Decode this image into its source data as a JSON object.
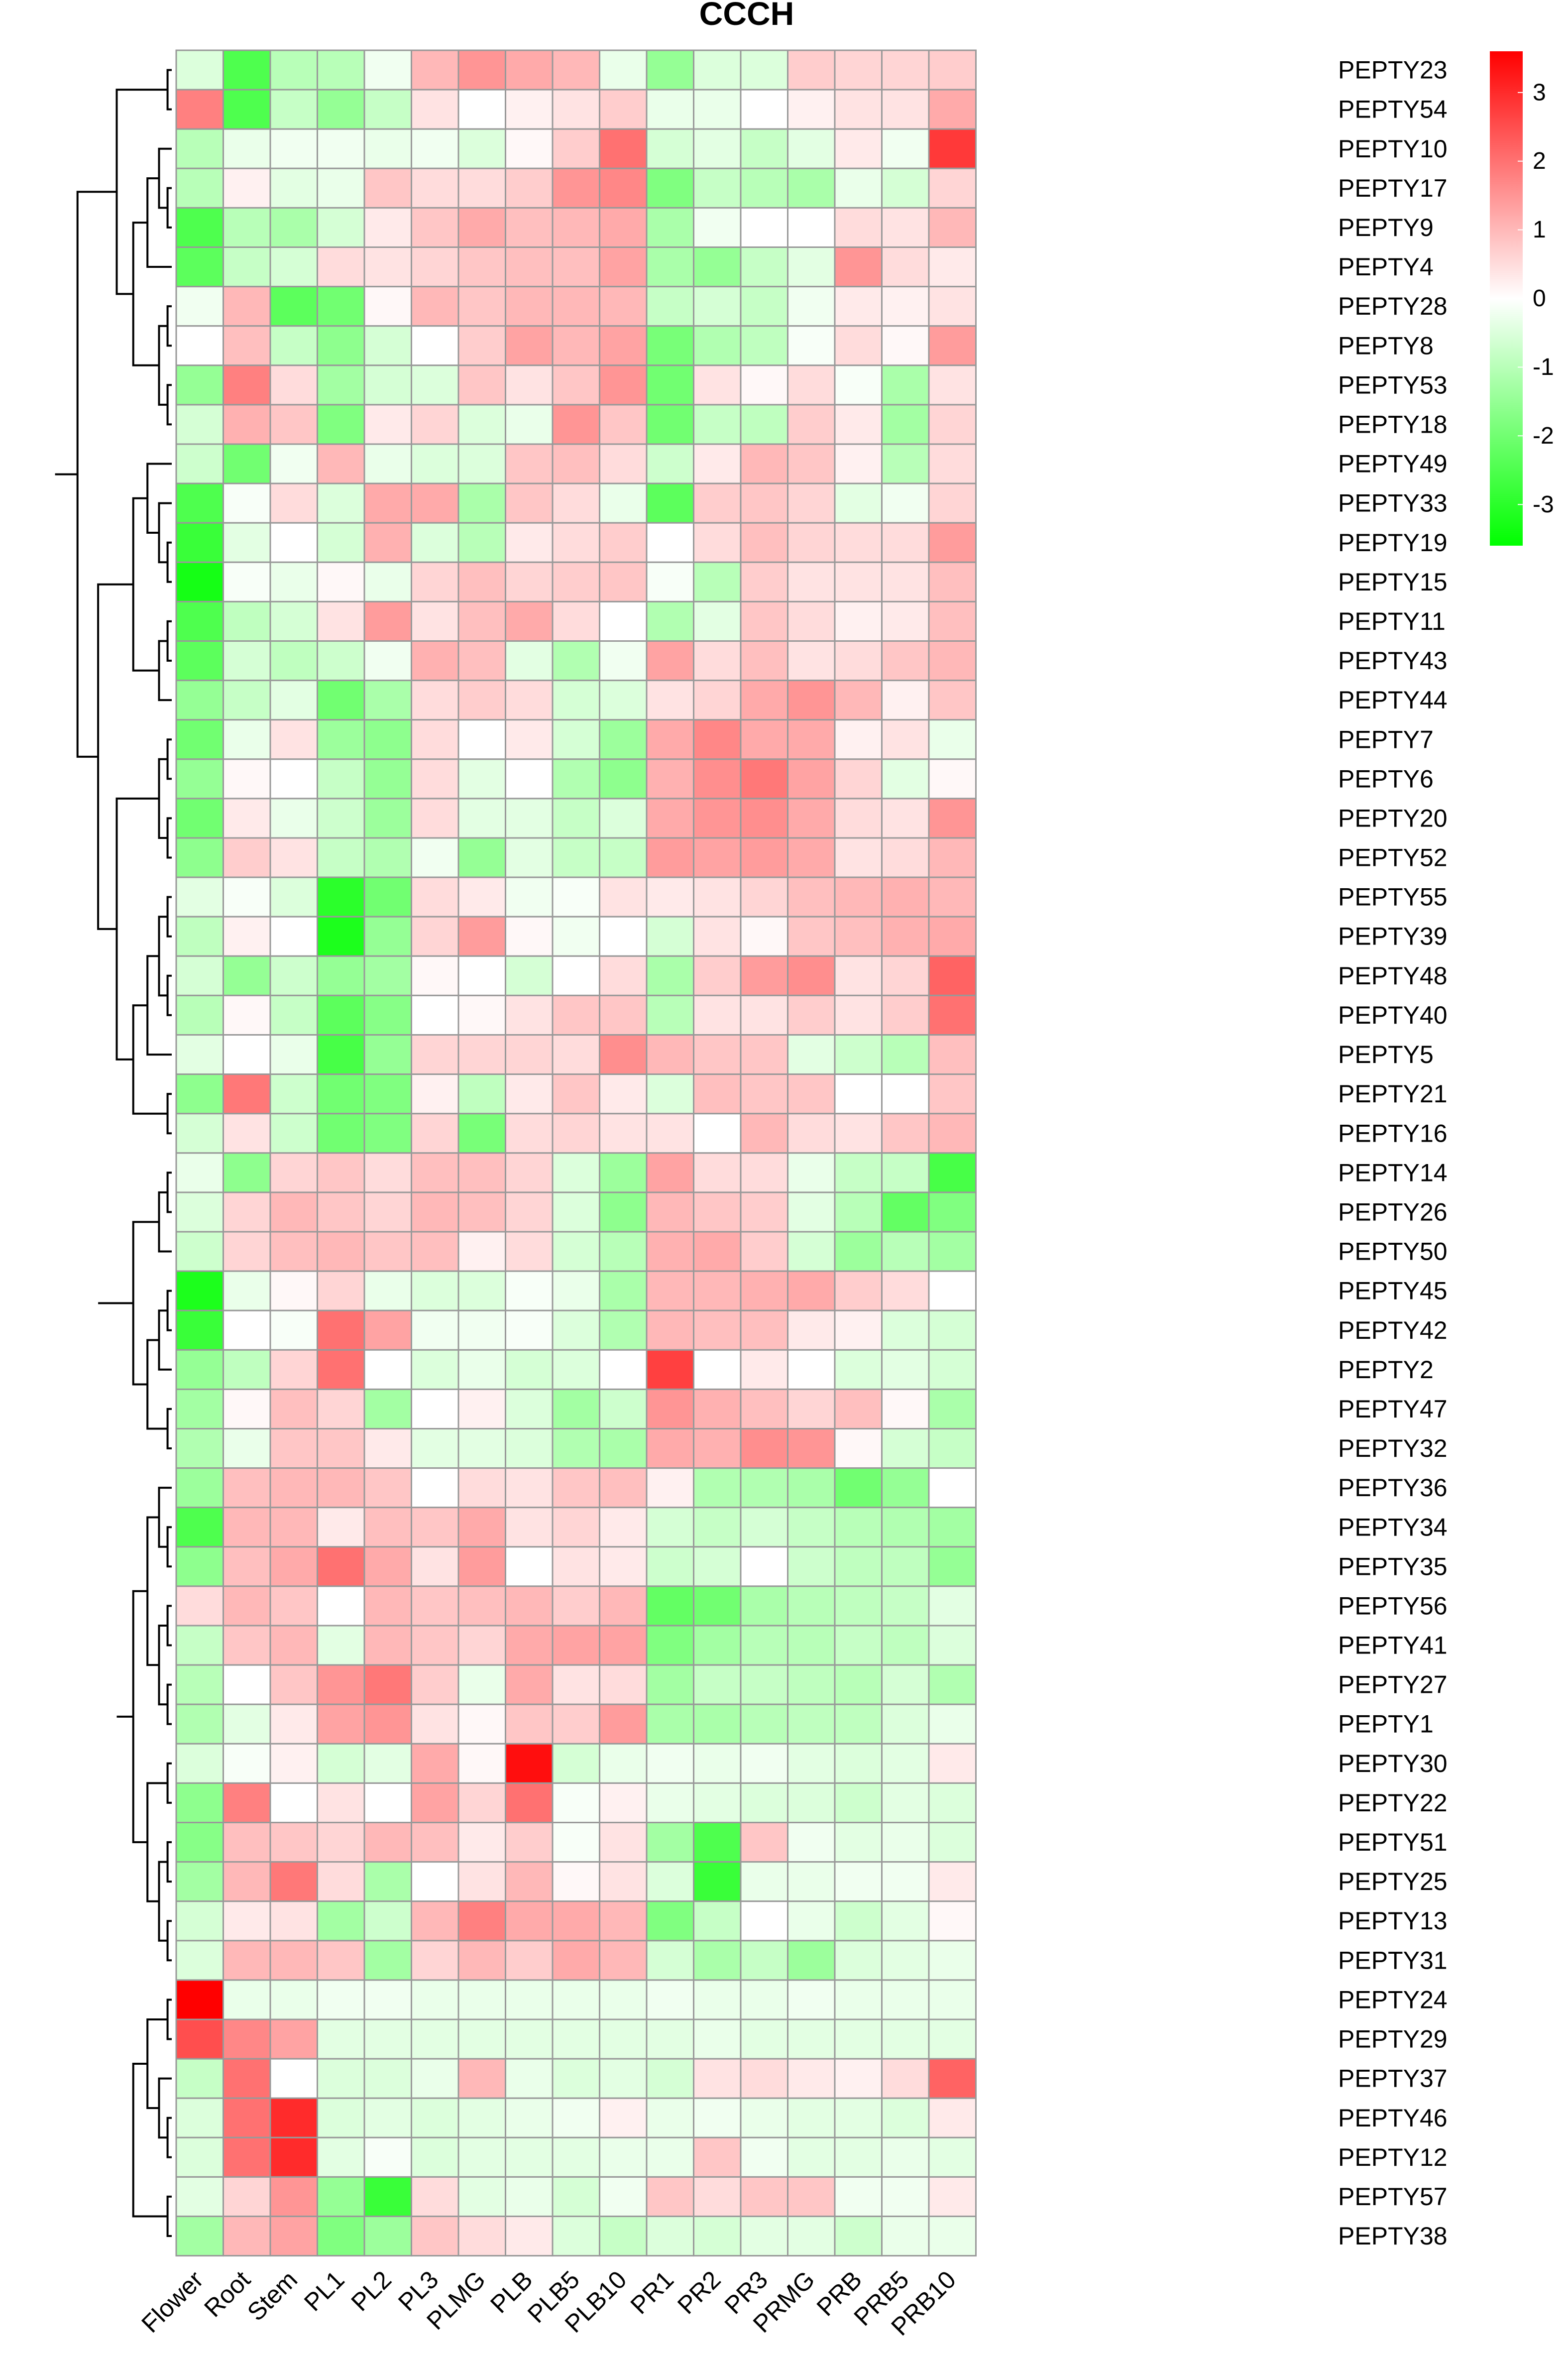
{
  "chart_data": {
    "type": "heatmap",
    "title": "CCCH",
    "xlabel": "",
    "ylabel": "",
    "columns": [
      "Flower",
      "Root",
      "Stem",
      "PL1",
      "PL2",
      "PL3",
      "PLMG",
      "PLB",
      "PLB5",
      "PLB10",
      "PR1",
      "PR2",
      "PR3",
      "PRMG",
      "PRB",
      "PRB5",
      "PRB10"
    ],
    "rows": [
      "PEPTY23",
      "PEPTY54",
      "PEPTY10",
      "PEPTY17",
      "PEPTY9",
      "PEPTY4",
      "PEPTY28",
      "PEPTY8",
      "PEPTY53",
      "PEPTY18",
      "PEPTY49",
      "PEPTY33",
      "PEPTY19",
      "PEPTY15",
      "PEPTY11",
      "PEPTY43",
      "PEPTY44",
      "PEPTY7",
      "PEPTY6",
      "PEPTY20",
      "PEPTY52",
      "PEPTY55",
      "PEPTY39",
      "PEPTY48",
      "PEPTY40",
      "PEPTY5",
      "PEPTY21",
      "PEPTY16",
      "PEPTY14",
      "PEPTY26",
      "PEPTY50",
      "PEPTY45",
      "PEPTY42",
      "PEPTY2",
      "PEPTY47",
      "PEPTY32",
      "PEPTY36",
      "PEPTY34",
      "PEPTY35",
      "PEPTY56",
      "PEPTY41",
      "PEPTY27",
      "PEPTY1",
      "PEPTY30",
      "PEPTY22",
      "PEPTY51",
      "PEPTY25",
      "PEPTY13",
      "PEPTY31",
      "PEPTY24",
      "PEPTY29",
      "PEPTY37",
      "PEPTY46",
      "PEPTY12",
      "PEPTY57",
      "PEPTY38"
    ],
    "values": [
      [
        -0.5,
        -2.5,
        -1.0,
        -1.0,
        -0.2,
        1.0,
        1.5,
        1.2,
        1.0,
        -0.3,
        -1.5,
        -0.5,
        -0.5,
        0.7,
        0.6,
        0.6,
        0.7
      ],
      [
        1.8,
        -2.5,
        -0.8,
        -1.5,
        -0.8,
        0.4,
        0.0,
        0.2,
        0.4,
        0.7,
        -0.3,
        -0.3,
        0.0,
        0.2,
        0.4,
        0.4,
        1.2
      ],
      [
        -1.0,
        -0.3,
        -0.2,
        -0.2,
        -0.3,
        -0.2,
        -0.5,
        0.1,
        0.7,
        2.0,
        -0.6,
        -0.4,
        -0.8,
        -0.4,
        0.3,
        -0.2,
        2.8
      ],
      [
        -1.0,
        0.2,
        -0.4,
        -0.3,
        0.8,
        0.5,
        0.5,
        0.7,
        1.5,
        1.7,
        -1.8,
        -0.8,
        -1.0,
        -1.2,
        -0.3,
        -0.6,
        0.6
      ],
      [
        -2.5,
        -1.0,
        -1.2,
        -0.6,
        0.3,
        0.8,
        1.2,
        0.9,
        1.0,
        1.2,
        -1.2,
        -0.2,
        0.0,
        0.0,
        0.5,
        0.4,
        1.0
      ],
      [
        -2.3,
        -0.8,
        -0.6,
        0.5,
        0.4,
        0.6,
        0.8,
        0.9,
        0.9,
        1.3,
        -1.2,
        -1.5,
        -0.8,
        -0.4,
        1.5,
        0.5,
        0.3
      ],
      [
        -0.2,
        1.0,
        -2.3,
        -2.0,
        0.1,
        1.0,
        0.8,
        1.0,
        1.0,
        1.0,
        -0.8,
        -0.6,
        -0.8,
        -0.2,
        0.3,
        0.2,
        0.4
      ],
      [
        0.0,
        0.9,
        -0.8,
        -1.6,
        -0.6,
        0.0,
        0.7,
        1.3,
        1.0,
        1.3,
        -1.9,
        -1.1,
        -0.9,
        -0.1,
        0.5,
        0.1,
        1.4
      ],
      [
        -1.5,
        1.8,
        0.5,
        -1.3,
        -0.6,
        -0.5,
        0.8,
        0.4,
        0.8,
        1.5,
        -2.0,
        0.4,
        0.1,
        0.5,
        -0.1,
        -1.2,
        0.4
      ],
      [
        -0.6,
        1.1,
        0.8,
        -1.8,
        0.3,
        0.6,
        -0.5,
        -0.3,
        1.5,
        0.8,
        -2.0,
        -0.8,
        -0.9,
        0.7,
        0.3,
        -1.3,
        0.6
      ],
      [
        -0.7,
        -2.0,
        -0.2,
        1.0,
        -0.3,
        -0.5,
        -0.5,
        0.8,
        0.9,
        0.5,
        -0.7,
        0.3,
        1.0,
        0.8,
        0.2,
        -1.0,
        0.5
      ],
      [
        -2.5,
        -0.1,
        0.5,
        -0.5,
        1.2,
        1.2,
        -1.2,
        0.8,
        0.5,
        -0.3,
        -2.3,
        0.7,
        0.8,
        0.6,
        -0.4,
        -0.2,
        0.6
      ],
      [
        -2.8,
        -0.4,
        0.0,
        -0.6,
        1.1,
        -0.5,
        -1.0,
        0.3,
        0.5,
        0.7,
        0.0,
        0.5,
        0.9,
        0.6,
        0.5,
        0.5,
        1.4
      ],
      [
        -3.3,
        -0.1,
        -0.3,
        0.1,
        -0.3,
        0.6,
        0.9,
        0.6,
        0.7,
        0.8,
        -0.1,
        -1.0,
        0.7,
        0.4,
        0.4,
        0.4,
        0.9
      ],
      [
        -2.5,
        -0.9,
        -0.6,
        0.4,
        1.4,
        0.4,
        0.9,
        1.2,
        0.5,
        0.0,
        -1.1,
        -0.4,
        0.8,
        0.5,
        0.2,
        0.3,
        0.9
      ],
      [
        -2.3,
        -0.6,
        -0.9,
        -0.7,
        -0.2,
        1.1,
        0.9,
        -0.4,
        -1.1,
        -0.2,
        1.3,
        0.5,
        0.9,
        0.4,
        0.5,
        0.8,
        1.0
      ],
      [
        -1.5,
        -0.8,
        -0.4,
        -2.0,
        -1.2,
        0.5,
        0.7,
        0.5,
        -0.6,
        -0.5,
        0.4,
        0.6,
        1.2,
        1.5,
        1.0,
        0.2,
        0.8
      ],
      [
        -2.0,
        -0.3,
        0.4,
        -1.4,
        -1.6,
        0.5,
        0.0,
        0.3,
        -0.6,
        -1.4,
        1.2,
        1.7,
        1.2,
        1.2,
        0.2,
        0.4,
        -0.3
      ],
      [
        -1.5,
        0.1,
        0.0,
        -0.8,
        -1.5,
        0.5,
        -0.4,
        0.0,
        -1.1,
        -1.6,
        1.1,
        1.6,
        1.9,
        1.3,
        0.6,
        -0.4,
        0.1
      ],
      [
        -2.0,
        0.3,
        -0.3,
        -0.7,
        -1.4,
        0.5,
        -0.4,
        -0.4,
        -0.8,
        -0.5,
        1.2,
        1.5,
        1.6,
        1.2,
        0.5,
        0.4,
        1.5
      ],
      [
        -1.6,
        0.7,
        0.4,
        -0.8,
        -1.1,
        -0.2,
        -1.5,
        -0.4,
        -0.8,
        -0.8,
        1.4,
        1.3,
        1.4,
        1.2,
        0.4,
        0.5,
        1.0
      ],
      [
        -0.4,
        -0.1,
        -0.5,
        -3.0,
        -2.0,
        0.5,
        0.3,
        -0.2,
        -0.1,
        0.4,
        0.3,
        0.4,
        0.6,
        0.9,
        1.0,
        1.1,
        1.0
      ],
      [
        -0.9,
        0.2,
        0.0,
        -3.2,
        -1.5,
        0.6,
        1.4,
        0.1,
        -0.2,
        0.0,
        -0.6,
        0.4,
        0.1,
        0.8,
        0.9,
        1.1,
        1.2
      ],
      [
        -0.6,
        -1.5,
        -0.7,
        -1.5,
        -1.3,
        0.1,
        0.0,
        -0.6,
        0.0,
        0.5,
        -1.2,
        0.7,
        1.4,
        1.6,
        0.4,
        0.6,
        2.2
      ],
      [
        -1.0,
        0.1,
        -0.8,
        -2.3,
        -1.7,
        0.0,
        0.1,
        0.4,
        0.8,
        0.8,
        -1.0,
        0.4,
        0.4,
        0.7,
        0.4,
        0.7,
        2.0
      ],
      [
        -0.4,
        0.0,
        -0.3,
        -2.6,
        -1.5,
        0.6,
        0.6,
        0.6,
        0.5,
        1.6,
        1.0,
        0.8,
        0.8,
        -0.4,
        -0.7,
        -1.0,
        0.9
      ],
      [
        -1.6,
        1.9,
        -0.7,
        -2.0,
        -1.8,
        0.2,
        -0.9,
        0.3,
        0.8,
        0.3,
        -0.5,
        0.9,
        0.8,
        0.8,
        0.0,
        0.0,
        0.8
      ],
      [
        -0.6,
        0.4,
        -0.7,
        -2.0,
        -1.8,
        0.6,
        -1.9,
        0.5,
        0.6,
        0.4,
        0.4,
        0.0,
        1.0,
        0.5,
        0.4,
        0.8,
        1.0
      ],
      [
        -0.3,
        -1.6,
        0.6,
        0.8,
        0.5,
        0.9,
        0.9,
        0.6,
        -0.5,
        -1.4,
        1.3,
        0.5,
        0.5,
        -0.3,
        -0.8,
        -0.8,
        -2.6
      ],
      [
        -0.5,
        0.6,
        1.0,
        0.8,
        0.6,
        1.0,
        0.9,
        0.6,
        -0.5,
        -1.6,
        1.0,
        0.8,
        0.7,
        -0.4,
        -1.0,
        -2.2,
        -1.8
      ],
      [
        -0.7,
        0.6,
        0.9,
        1.0,
        0.8,
        0.9,
        0.2,
        0.5,
        -0.6,
        -1.0,
        1.1,
        1.2,
        0.7,
        -0.6,
        -1.4,
        -1.0,
        -1.3
      ],
      [
        -3.2,
        -0.3,
        0.1,
        0.6,
        -0.3,
        -0.5,
        -0.5,
        -0.1,
        -0.3,
        -1.2,
        1.0,
        1.0,
        1.1,
        1.2,
        0.7,
        0.5,
        0.0
      ],
      [
        -2.8,
        0.0,
        -0.1,
        2.0,
        1.3,
        -0.2,
        -0.2,
        -0.1,
        -0.5,
        -1.1,
        1.0,
        0.9,
        0.9,
        0.3,
        0.2,
        -0.5,
        -0.6
      ],
      [
        -1.5,
        -0.9,
        0.6,
        2.0,
        0.0,
        -0.5,
        -0.3,
        -0.6,
        -0.5,
        0.0,
        2.7,
        0.0,
        0.3,
        0.0,
        -0.5,
        -0.4,
        -0.6
      ],
      [
        -1.3,
        0.1,
        0.9,
        0.6,
        -1.3,
        0.0,
        0.2,
        -0.5,
        -1.3,
        -0.7,
        1.5,
        1.1,
        0.9,
        0.6,
        0.9,
        0.1,
        -1.2
      ],
      [
        -1.1,
        -0.3,
        0.8,
        0.8,
        0.3,
        -0.4,
        -0.4,
        -0.5,
        -1.1,
        -1.2,
        1.2,
        1.1,
        1.6,
        1.5,
        0.1,
        -0.6,
        -0.8
      ],
      [
        -1.4,
        0.9,
        1.0,
        1.0,
        0.8,
        0.0,
        0.5,
        0.4,
        0.8,
        0.9,
        0.2,
        -1.1,
        -1.1,
        -1.2,
        -2.0,
        -1.5,
        0.0
      ],
      [
        -2.5,
        1.0,
        1.0,
        0.3,
        0.9,
        0.8,
        1.2,
        0.4,
        0.6,
        0.3,
        -0.6,
        -0.8,
        -0.6,
        -0.8,
        -1.0,
        -1.1,
        -1.3
      ],
      [
        -1.6,
        0.9,
        1.2,
        2.0,
        1.2,
        0.4,
        1.4,
        0.0,
        0.4,
        0.3,
        -0.7,
        -0.6,
        0.0,
        -0.7,
        -0.9,
        -0.9,
        -1.5
      ],
      [
        0.5,
        1.0,
        0.8,
        0.0,
        1.0,
        0.8,
        0.9,
        1.0,
        0.7,
        1.0,
        -2.2,
        -2.0,
        -1.2,
        -1.0,
        -0.9,
        -0.8,
        -0.4
      ],
      [
        -0.8,
        0.8,
        1.0,
        -0.4,
        1.0,
        0.8,
        0.6,
        1.2,
        1.3,
        1.3,
        -1.8,
        -1.3,
        -1.0,
        -1.0,
        -0.8,
        -0.9,
        -0.5
      ],
      [
        -1.0,
        0.0,
        0.8,
        1.5,
        1.9,
        0.7,
        -0.3,
        1.2,
        0.4,
        0.5,
        -1.3,
        -0.8,
        -0.8,
        -0.9,
        -1.0,
        -0.6,
        -1.1
      ],
      [
        -1.1,
        -0.4,
        0.3,
        1.3,
        1.5,
        0.4,
        0.1,
        0.8,
        0.7,
        1.4,
        -1.2,
        -1.2,
        -1.0,
        -0.9,
        -0.9,
        -0.5,
        -0.3
      ],
      [
        -0.5,
        -0.1,
        0.2,
        -0.6,
        -0.4,
        1.2,
        0.1,
        3.4,
        -0.6,
        -0.3,
        -0.2,
        -0.3,
        -0.2,
        -0.4,
        -0.5,
        -0.4,
        0.3
      ],
      [
        -1.6,
        1.8,
        0.0,
        0.4,
        0.0,
        1.3,
        0.6,
        2.0,
        -0.1,
        0.2,
        -0.3,
        -0.4,
        -0.5,
        -0.5,
        -0.7,
        -0.4,
        -0.5
      ],
      [
        -1.7,
        0.9,
        0.8,
        0.6,
        1.0,
        0.9,
        0.3,
        0.7,
        -0.1,
        0.4,
        -1.3,
        -2.5,
        0.8,
        -0.2,
        -0.4,
        -0.3,
        -0.5
      ],
      [
        -1.3,
        1.0,
        1.9,
        0.5,
        -1.2,
        0.0,
        0.4,
        1.0,
        0.1,
        0.4,
        -0.5,
        -2.8,
        -0.3,
        -0.3,
        -0.2,
        -0.2,
        0.3
      ],
      [
        -0.6,
        0.3,
        0.4,
        -1.3,
        -0.7,
        1.0,
        1.8,
        1.2,
        1.2,
        1.0,
        -1.8,
        -0.8,
        0.0,
        -0.3,
        -0.7,
        -0.4,
        0.1
      ],
      [
        -0.5,
        1.0,
        1.0,
        0.8,
        -1.3,
        0.6,
        1.0,
        0.7,
        1.2,
        1.0,
        -0.6,
        -1.2,
        -0.8,
        -1.4,
        -0.5,
        -0.4,
        -0.3
      ],
      [
        3.6,
        -0.3,
        -0.3,
        -0.2,
        -0.2,
        -0.3,
        -0.3,
        -0.3,
        -0.3,
        -0.3,
        -0.2,
        -0.3,
        -0.3,
        -0.2,
        -0.3,
        -0.3,
        -0.3
      ],
      [
        2.5,
        1.7,
        1.3,
        -0.4,
        -0.4,
        -0.4,
        -0.4,
        -0.4,
        -0.4,
        -0.4,
        -0.4,
        -0.3,
        -0.4,
        -0.4,
        -0.4,
        -0.4,
        -0.4
      ],
      [
        -0.8,
        2.0,
        0.0,
        -0.5,
        -0.5,
        -0.3,
        1.0,
        -0.3,
        -0.5,
        -0.4,
        -0.6,
        0.4,
        0.5,
        0.3,
        0.2,
        0.5,
        2.2
      ],
      [
        -0.5,
        2.0,
        3.0,
        -0.5,
        -0.4,
        -0.5,
        -0.4,
        -0.3,
        -0.2,
        0.2,
        -0.3,
        -0.2,
        -0.3,
        -0.4,
        -0.4,
        -0.5,
        0.3
      ],
      [
        -0.5,
        2.0,
        3.0,
        -0.4,
        -0.1,
        -0.5,
        -0.4,
        -0.4,
        -0.4,
        -0.3,
        -0.3,
        0.8,
        -0.2,
        -0.4,
        -0.4,
        -0.3,
        -0.4
      ],
      [
        -0.4,
        0.6,
        1.5,
        -1.5,
        -2.8,
        0.5,
        -0.4,
        -0.3,
        -0.6,
        -0.2,
        0.8,
        0.5,
        0.8,
        0.8,
        -0.2,
        -0.2,
        0.3
      ],
      [
        -1.3,
        1.0,
        1.3,
        -1.8,
        -1.4,
        0.8,
        0.5,
        0.3,
        -0.5,
        -0.8,
        -0.5,
        -0.6,
        -0.4,
        -0.4,
        -0.7,
        -0.3,
        -0.3
      ]
    ],
    "color_scale": {
      "colors": [
        "#00ff00",
        "#ffffff",
        "#ff0000"
      ],
      "range": [
        -3.6,
        3.6
      ],
      "ticks": [
        3,
        2,
        1,
        0,
        -1,
        -2,
        -3
      ],
      "tick_labels": [
        "3",
        "2",
        "1",
        "0",
        "-1",
        "-2",
        "-3"
      ]
    },
    "legend": "top-right",
    "grid_color": "#999999",
    "row_dendrogram": "left",
    "column_labels_rotation_deg": -45
  }
}
